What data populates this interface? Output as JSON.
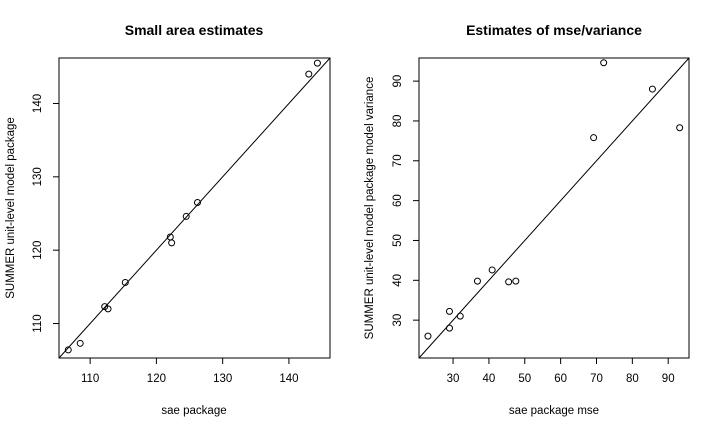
{
  "chart_data": [
    {
      "type": "scatter",
      "title": "Small area estimates",
      "xlabel": "sae package",
      "ylabel": "SUMMER unit-level model package",
      "xlim": [
        105.3,
        146.2
      ],
      "ylim": [
        105.3,
        146.2
      ],
      "xticks": [
        110,
        120,
        130,
        140
      ],
      "yticks": [
        110,
        120,
        130,
        140
      ],
      "reference_line": "y = x",
      "points": [
        {
          "x": 106.7,
          "y": 106.4
        },
        {
          "x": 108.5,
          "y": 107.3
        },
        {
          "x": 112.2,
          "y": 112.3
        },
        {
          "x": 112.7,
          "y": 112.0
        },
        {
          "x": 115.3,
          "y": 115.6
        },
        {
          "x": 122.1,
          "y": 121.8
        },
        {
          "x": 122.3,
          "y": 121.0
        },
        {
          "x": 124.5,
          "y": 124.6
        },
        {
          "x": 126.2,
          "y": 126.5
        },
        {
          "x": 143.0,
          "y": 144.0
        },
        {
          "x": 144.3,
          "y": 145.5
        }
      ]
    },
    {
      "type": "scatter",
      "title": "Estimates of mse/variance",
      "xlabel": "sae package mse",
      "ylabel": "SUMMER unit-level model package model variance",
      "xlim": [
        20.5,
        95.8
      ],
      "ylim": [
        20.5,
        95.8
      ],
      "xticks": [
        30,
        40,
        50,
        60,
        70,
        80,
        90
      ],
      "yticks": [
        30,
        40,
        50,
        60,
        70,
        80,
        90
      ],
      "reference_line": "y = x",
      "points": [
        {
          "x": 23.0,
          "y": 26.0
        },
        {
          "x": 29.0,
          "y": 28.0
        },
        {
          "x": 29.0,
          "y": 32.2
        },
        {
          "x": 32.0,
          "y": 31.0
        },
        {
          "x": 36.8,
          "y": 39.8
        },
        {
          "x": 40.9,
          "y": 42.6
        },
        {
          "x": 45.5,
          "y": 39.6
        },
        {
          "x": 47.5,
          "y": 39.8
        },
        {
          "x": 69.2,
          "y": 75.8
        },
        {
          "x": 72.0,
          "y": 94.6
        },
        {
          "x": 85.6,
          "y": 88.0
        },
        {
          "x": 93.2,
          "y": 78.3
        }
      ]
    }
  ]
}
